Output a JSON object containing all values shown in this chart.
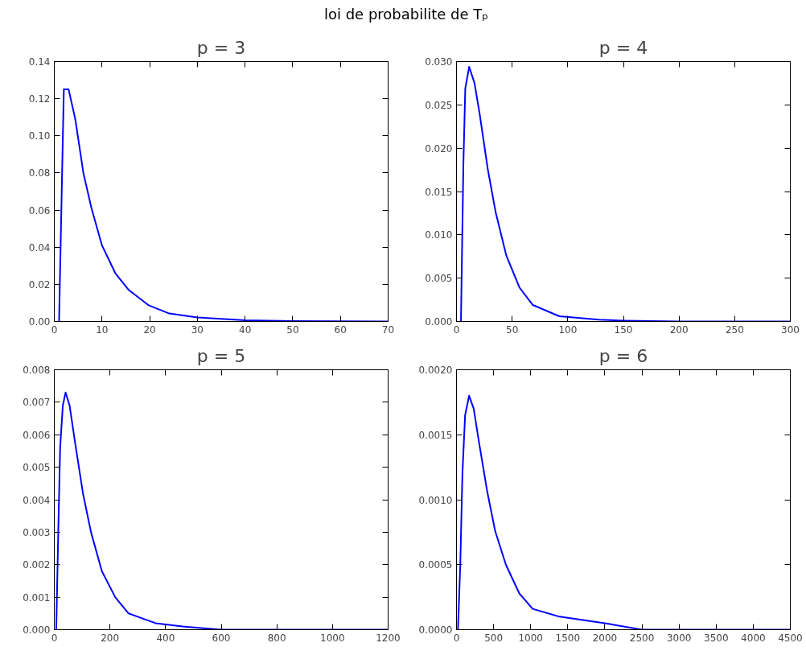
{
  "chart_data": [
    {
      "type": "line",
      "title": "p = 3",
      "annotations": [
        "loi de probabilite de Tₚ"
      ],
      "x": [
        1,
        2,
        3,
        4.4,
        6.1,
        7.8,
        10,
        12.8,
        15.6,
        19.8,
        24.1,
        30,
        40,
        50,
        60,
        70
      ],
      "series": [
        {
          "color": "#0000ff",
          "values": [
            0,
            0.125,
            0.125,
            0.109,
            0.08,
            0.061,
            0.041,
            0.026,
            0.017,
            0.0087,
            0.0043,
            0.0022,
            0.0006,
            0.0002,
            0.0001,
            0
          ]
        }
      ],
      "xlim": [
        0,
        70
      ],
      "xticks": [
        0,
        10,
        20,
        30,
        40,
        50,
        60,
        70
      ],
      "ylim": [
        0,
        0.14
      ],
      "yticks": [
        {
          "value": 0,
          "label": "0.00"
        },
        {
          "value": 0.02,
          "label": "0.02"
        },
        {
          "value": 0.04,
          "label": "0.04"
        },
        {
          "value": 0.06,
          "label": "0.06"
        },
        {
          "value": 0.08,
          "label": "0.08"
        },
        {
          "value": 0.1,
          "label": "0.10"
        },
        {
          "value": 0.12,
          "label": "0.12"
        },
        {
          "value": 0.14,
          "label": "0.14"
        }
      ],
      "grid": false,
      "marker": "none",
      "line_style": "solid"
    },
    {
      "type": "line",
      "title": "p = 4",
      "x": [
        4,
        6.2,
        7.9,
        11.4,
        16.2,
        21,
        28.1,
        35.2,
        44.8,
        56.7,
        68.6,
        92.4,
        128,
        150,
        200,
        300
      ],
      "series": [
        {
          "color": "#0000ff",
          "values": [
            0,
            0.0182,
            0.0269,
            0.0294,
            0.0275,
            0.0238,
            0.0176,
            0.0126,
            0.0076,
            0.0039,
            0.0019,
            0.0006,
            0.0002,
            0.0001,
            0,
            0
          ]
        }
      ],
      "xlim": [
        0,
        300
      ],
      "xticks": [
        0,
        50,
        100,
        150,
        200,
        250,
        300
      ],
      "ylim": [
        0,
        0.03
      ],
      "yticks": [
        {
          "value": 0,
          "label": "0.000"
        },
        {
          "value": 0.005,
          "label": "0.005"
        },
        {
          "value": 0.01,
          "label": "0.010"
        },
        {
          "value": 0.015,
          "label": "0.015"
        },
        {
          "value": 0.02,
          "label": "0.020"
        },
        {
          "value": 0.025,
          "label": "0.025"
        },
        {
          "value": 0.03,
          "label": "0.030"
        }
      ],
      "grid": false,
      "marker": "none",
      "line_style": "solid"
    },
    {
      "type": "line",
      "title": "p = 5",
      "x": [
        7,
        14.5,
        21,
        30.7,
        40.6,
        55,
        74,
        103,
        132,
        171,
        219,
        267,
        364,
        461,
        600,
        800,
        1200
      ],
      "series": [
        {
          "color": "#0000ff",
          "values": [
            0,
            0.0031,
            0.0056,
            0.0069,
            0.0073,
            0.0069,
            0.0058,
            0.0042,
            0.003,
            0.0018,
            0.001,
            0.0005,
            0.0002,
            0.0001,
            0,
            0,
            0
          ]
        }
      ],
      "xlim": [
        0,
        1200
      ],
      "xticks": [
        0,
        200,
        400,
        600,
        800,
        1000,
        1200
      ],
      "ylim": [
        0,
        0.008
      ],
      "yticks": [
        {
          "value": 0,
          "label": "0.000"
        },
        {
          "value": 0.001,
          "label": "0.001"
        },
        {
          "value": 0.002,
          "label": "0.002"
        },
        {
          "value": 0.003,
          "label": "0.003"
        },
        {
          "value": 0.004,
          "label": "0.004"
        },
        {
          "value": 0.005,
          "label": "0.005"
        },
        {
          "value": 0.006,
          "label": "0.006"
        },
        {
          "value": 0.007,
          "label": "0.007"
        },
        {
          "value": 0.008,
          "label": "0.008"
        }
      ],
      "grid": false,
      "marker": "none",
      "line_style": "solid"
    },
    {
      "type": "line",
      "title": "p = 6",
      "x": [
        20,
        51,
        80,
        116,
        170,
        232,
        304,
        412,
        521,
        666,
        846,
        1027,
        1388,
        2000,
        2500,
        3000,
        4500
      ],
      "series": [
        {
          "color": "#0000ff",
          "values": [
            0,
            0.0005,
            0.0012,
            0.00165,
            0.0018,
            0.0017,
            0.00144,
            0.00107,
            0.00076,
            0.0005,
            0.00028,
            0.00016,
            0.0001,
            5e-05,
            0,
            0,
            0
          ]
        }
      ],
      "xlim": [
        0,
        4500
      ],
      "xticks": [
        0,
        500,
        1000,
        1500,
        2000,
        2500,
        3000,
        3500,
        4000,
        4500
      ],
      "ylim": [
        0,
        0.002
      ],
      "yticks": [
        {
          "value": 0,
          "label": "0.0000"
        },
        {
          "value": 0.0005,
          "label": "0.0005"
        },
        {
          "value": 0.001,
          "label": "0.0010"
        },
        {
          "value": 0.0015,
          "label": "0.0015"
        },
        {
          "value": 0.002,
          "label": "0.0020"
        }
      ],
      "grid": false,
      "marker": "none",
      "line_style": "solid"
    }
  ]
}
